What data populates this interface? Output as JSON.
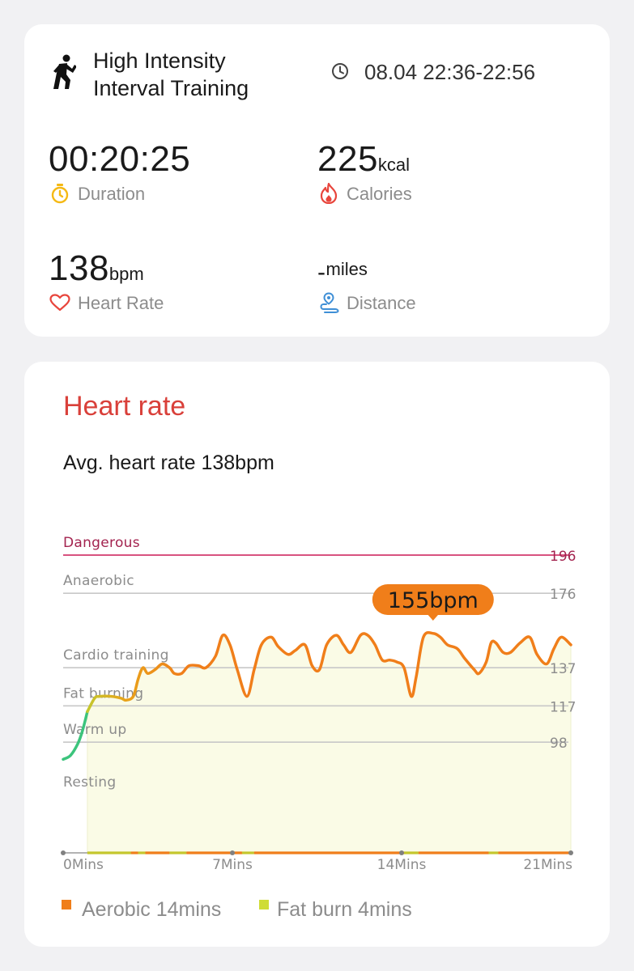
{
  "summary": {
    "activity_line1": "High Intensity",
    "activity_line2": "Interval Training",
    "time_range": "08.04 22:36-22:56",
    "duration_value": "00:20:25",
    "duration_label": "Duration",
    "calories_value": "225",
    "calories_unit": "kcal",
    "calories_label": "Calories",
    "heart_rate_value": "138",
    "heart_rate_unit": "bpm",
    "heart_rate_label": "Heart Rate",
    "distance_value": "-",
    "distance_unit": "miles",
    "distance_label": "Distance",
    "icons": [
      "running-person-icon",
      "clock-icon",
      "stopwatch-icon",
      "flame-icon",
      "heart-icon",
      "location-pin-icon"
    ],
    "colors": {
      "duration_icon": "#f5b914",
      "calories_icon": "#e8453c",
      "heart_icon": "#e8453c",
      "distance_icon": "#3f8fd6"
    }
  },
  "heart_rate": {
    "title": "Heart rate",
    "avg_text": "Avg. heart rate 138bpm",
    "legend": [
      {
        "label": "Aerobic 14mins",
        "color": "#f07e1a"
      },
      {
        "label": "Fat burn 4mins",
        "color": "#cfdc35"
      }
    ]
  },
  "chart_data": {
    "type": "line",
    "xlim": [
      0,
      21
    ],
    "ylim": [
      40,
      196
    ],
    "x_ticks": [
      {
        "value": 0,
        "label": "0Mins"
      },
      {
        "value": 7,
        "label": "7Mins"
      },
      {
        "value": 14,
        "label": "14Mins"
      },
      {
        "value": 21,
        "label": "21Mins"
      }
    ],
    "zones": [
      {
        "name": "Dangerous",
        "value": 196,
        "label_value": "196",
        "color": "#d8527f",
        "text_color": "#a3234f"
      },
      {
        "name": "Anaerobic",
        "value": 176,
        "label_value": "176",
        "color": "#c8c8c8",
        "text_color": "#8c8c8c"
      },
      {
        "name": "Cardio training",
        "value": 137,
        "label_value": "137",
        "color": "#c8c8c8",
        "text_color": "#8c8c8c"
      },
      {
        "name": "Fat burning",
        "value": 117,
        "label_value": "117",
        "color": "#c8c8c8",
        "text_color": "#8c8c8c"
      },
      {
        "name": "Warm up",
        "value": 98,
        "label_value": "98",
        "color": "#c8c8c8",
        "text_color": "#8c8c8c"
      },
      {
        "name": "Resting",
        "value": null,
        "label_value": "",
        "color": "",
        "text_color": "#8c8c8c"
      }
    ],
    "callout": {
      "label": "155bpm",
      "x": 15.3,
      "y": 155,
      "color": "#f07e1a"
    },
    "colors": {
      "warmup": "#3cc47c",
      "fatburn": "#c4c72d",
      "aerobic": "#f07e1a",
      "fill": "#fafbe6"
    },
    "series": [
      {
        "points": [
          [
            0.0,
            89
          ],
          [
            0.3,
            91
          ],
          [
            0.6,
            97
          ],
          [
            0.8,
            104
          ],
          [
            1.0,
            114
          ],
          [
            1.3,
            121
          ],
          [
            1.5,
            122
          ],
          [
            2.0,
            122
          ],
          [
            2.4,
            121
          ],
          [
            2.6,
            120
          ],
          [
            2.9,
            122
          ],
          [
            3.1,
            131
          ],
          [
            3.3,
            137
          ],
          [
            3.5,
            134
          ],
          [
            3.8,
            136
          ],
          [
            4.1,
            139
          ],
          [
            4.4,
            137
          ],
          [
            4.6,
            134
          ],
          [
            4.9,
            134
          ],
          [
            5.2,
            138
          ],
          [
            5.6,
            138
          ],
          [
            5.9,
            137
          ],
          [
            6.3,
            143
          ],
          [
            6.6,
            154
          ],
          [
            6.9,
            149
          ],
          [
            7.2,
            136
          ],
          [
            7.6,
            122
          ],
          [
            7.9,
            136
          ],
          [
            8.2,
            149
          ],
          [
            8.6,
            153
          ],
          [
            8.9,
            148
          ],
          [
            9.3,
            144
          ],
          [
            9.6,
            146
          ],
          [
            10.0,
            149
          ],
          [
            10.3,
            138
          ],
          [
            10.6,
            136
          ],
          [
            10.9,
            149
          ],
          [
            11.3,
            154
          ],
          [
            11.6,
            149
          ],
          [
            11.9,
            145
          ],
          [
            12.3,
            154
          ],
          [
            12.6,
            154
          ],
          [
            12.9,
            149
          ],
          [
            13.2,
            141
          ],
          [
            13.5,
            141
          ],
          [
            13.8,
            140
          ],
          [
            14.1,
            137
          ],
          [
            14.4,
            122
          ],
          [
            14.6,
            132
          ],
          [
            14.9,
            153
          ],
          [
            15.3,
            155
          ],
          [
            15.6,
            153
          ],
          [
            15.9,
            149
          ],
          [
            16.3,
            147
          ],
          [
            16.6,
            142
          ],
          [
            17.0,
            136
          ],
          [
            17.2,
            134
          ],
          [
            17.5,
            140
          ],
          [
            17.7,
            150
          ],
          [
            17.9,
            150
          ],
          [
            18.2,
            145
          ],
          [
            18.5,
            145
          ],
          [
            18.9,
            150
          ],
          [
            19.3,
            153
          ],
          [
            19.6,
            144
          ],
          [
            20.0,
            139
          ],
          [
            20.3,
            147
          ],
          [
            20.6,
            153
          ],
          [
            21.0,
            149
          ]
        ]
      }
    ],
    "timeline_segments": [
      {
        "from": 1.0,
        "to": 2.8,
        "zone": "fatburn"
      },
      {
        "from": 2.8,
        "to": 3.1,
        "zone": "aerobic"
      },
      {
        "from": 3.1,
        "to": 3.4,
        "zone": "fatburn"
      },
      {
        "from": 3.4,
        "to": 4.4,
        "zone": "aerobic"
      },
      {
        "from": 4.4,
        "to": 5.1,
        "zone": "fatburn"
      },
      {
        "from": 5.1,
        "to": 7.4,
        "zone": "aerobic"
      },
      {
        "from": 7.4,
        "to": 7.9,
        "zone": "fatburn"
      },
      {
        "from": 7.9,
        "to": 14.1,
        "zone": "aerobic"
      },
      {
        "from": 14.1,
        "to": 14.7,
        "zone": "fatburn"
      },
      {
        "from": 14.7,
        "to": 17.6,
        "zone": "aerobic"
      },
      {
        "from": 17.6,
        "to": 18.0,
        "zone": "fatburn"
      },
      {
        "from": 18.0,
        "to": 21.0,
        "zone": "aerobic"
      }
    ]
  }
}
